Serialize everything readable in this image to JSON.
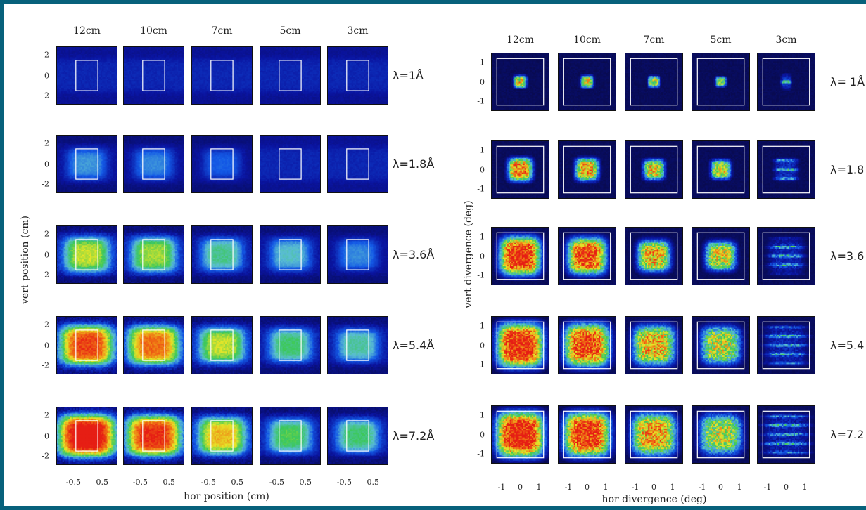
{
  "colors": {
    "frame": "#07617b",
    "background": "#ffffff",
    "panel_bg": "#0a0a3a",
    "box": "#ffffff"
  },
  "chart_data": [
    {
      "type": "heatmap",
      "id": "left",
      "title": "",
      "columns": [
        "12cm",
        "10cm",
        "7cm",
        "5cm",
        "3cm"
      ],
      "rows": [
        "λ=1Å",
        "λ=1.8Å",
        "λ=3.6Å",
        "λ=5.4Å",
        "λ=7.2Å"
      ],
      "xlabel": "hor position (cm)",
      "ylabel": "vert position (cm)",
      "xticks": [
        "-0.5",
        "0.5"
      ],
      "yticks": [
        "2",
        "0",
        "-2"
      ],
      "xlim": [
        -1,
        1
      ],
      "ylim": [
        -3,
        3
      ],
      "intensity": [
        [
          0.16,
          0.15,
          0.14,
          0.13,
          0.12
        ],
        [
          0.3,
          0.28,
          0.22,
          0.18,
          0.14
        ],
        [
          0.58,
          0.55,
          0.42,
          0.36,
          0.28
        ],
        [
          0.82,
          0.76,
          0.58,
          0.45,
          0.4
        ],
        [
          0.95,
          0.86,
          0.66,
          0.48,
          0.45
        ]
      ]
    },
    {
      "type": "heatmap",
      "id": "right",
      "title": "",
      "columns": [
        "12cm",
        "10cm",
        "7cm",
        "5cm",
        "3cm"
      ],
      "rows": [
        "λ= 1Å",
        "λ=1.8",
        "λ=3.6",
        "λ=5.4",
        "λ=7.2"
      ],
      "xlabel": "hor divergence (deg)",
      "ylabel": "vert divergence (deg)",
      "xticks": [
        "-1",
        "0",
        "1"
      ],
      "yticks": [
        "1",
        "0",
        "-1"
      ],
      "xlim": [
        -1.5,
        1.5
      ],
      "ylim": [
        -1.5,
        1.5
      ],
      "intensity": [
        [
          0.6,
          0.58,
          0.56,
          0.54,
          0.45
        ],
        [
          0.72,
          0.68,
          0.62,
          0.58,
          0.4
        ],
        [
          0.85,
          0.8,
          0.66,
          0.6,
          0.35
        ],
        [
          0.86,
          0.8,
          0.66,
          0.56,
          0.35
        ],
        [
          0.88,
          0.82,
          0.68,
          0.55,
          0.32
        ]
      ],
      "spread": [
        [
          0.22,
          0.22,
          0.2,
          0.18,
          0.18
        ],
        [
          0.42,
          0.4,
          0.36,
          0.34,
          0.4
        ],
        [
          0.7,
          0.66,
          0.56,
          0.52,
          0.6
        ],
        [
          0.8,
          0.78,
          0.72,
          0.68,
          0.72
        ],
        [
          0.82,
          0.8,
          0.76,
          0.72,
          0.78
        ]
      ]
    }
  ]
}
